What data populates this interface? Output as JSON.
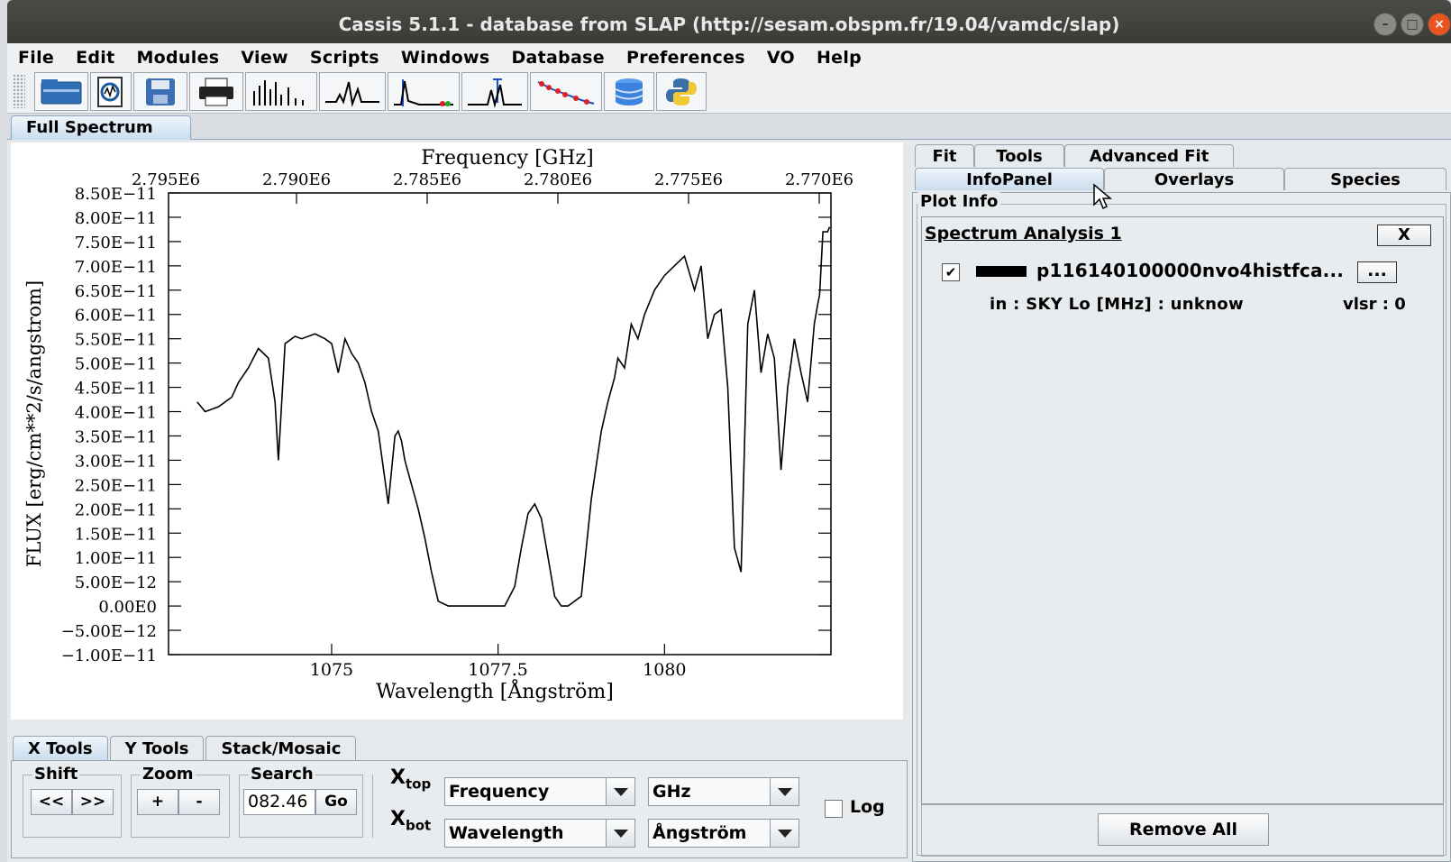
{
  "window": {
    "title": "Cassis 5.1.1 - database from SLAP (http://sesam.obspm.fr/19.04/vamdc/slap)"
  },
  "menu": [
    "File",
    "Edit",
    "Modules",
    "View",
    "Scripts",
    "Windows",
    "Database",
    "Preferences",
    "VO",
    "Help"
  ],
  "toolbar": {
    "icons": [
      "open-folder-icon",
      "open-spectrum-icon",
      "save-icon",
      "print-icon",
      "line-spectrum-icon",
      "spectrum-analysis-icon",
      "line-analysis-icon",
      "loomis-wood-icon",
      "rotational-diagram-icon",
      "database-icon",
      "python-icon"
    ]
  },
  "main_tab": {
    "label": "Full Spectrum"
  },
  "chart_data": {
    "type": "line",
    "top_axis_title": "Frequency [GHz]",
    "top_ticks": [
      "2.795E6",
      "2.790E6",
      "2.785E6",
      "2.780E6",
      "2.775E6",
      "2.770E6"
    ],
    "xlabel": "Wavelength [Ångström]",
    "x_ticks": [
      "1075",
      "1077.5",
      "1080"
    ],
    "ylabel": "FLUX [erg/cm**2/s/angstrom]",
    "y_ticks": [
      "8.50E−11",
      "8.00E−11",
      "7.50E−11",
      "7.00E−11",
      "6.50E−11",
      "6.00E−11",
      "5.50E−11",
      "5.00E−11",
      "4.50E−11",
      "4.00E−11",
      "3.50E−11",
      "3.00E−11",
      "2.50E−11",
      "2.00E−11",
      "1.50E−11",
      "1.00E−11",
      "5.00E−12",
      "0.00E0",
      "−5.00E−12",
      "−1.00E−11"
    ],
    "xlim": [
      1072.55,
      1082.5
    ],
    "ylim": [
      -1e-11,
      8.5e-11
    ],
    "color": "#000000",
    "x": [
      1072.98,
      1073.1,
      1073.3,
      1073.5,
      1073.6,
      1073.75,
      1073.9,
      1074.05,
      1074.15,
      1074.2,
      1074.3,
      1074.45,
      1074.55,
      1074.75,
      1074.9,
      1075.0,
      1075.1,
      1075.2,
      1075.3,
      1075.4,
      1075.5,
      1075.6,
      1075.7,
      1075.85,
      1075.95,
      1076.0,
      1076.05,
      1076.1,
      1076.2,
      1076.3,
      1076.4,
      1076.5,
      1076.6,
      1076.75,
      1076.85,
      1077.0,
      1077.2,
      1077.4,
      1077.6,
      1077.75,
      1077.85,
      1077.95,
      1078.05,
      1078.15,
      1078.25,
      1078.35,
      1078.45,
      1078.55,
      1078.65,
      1078.75,
      1078.9,
      1079.05,
      1079.15,
      1079.25,
      1079.3,
      1079.4,
      1079.5,
      1079.6,
      1079.7,
      1079.85,
      1080.0,
      1080.15,
      1080.3,
      1080.45,
      1080.55,
      1080.65,
      1080.75,
      1080.85,
      1080.95,
      1081.05,
      1081.15,
      1081.25,
      1081.35,
      1081.45,
      1081.55,
      1081.65,
      1081.75,
      1081.85,
      1081.95,
      1082.05,
      1082.15,
      1082.25,
      1082.3,
      1082.33,
      1082.38,
      1082.45,
      1082.48
    ],
    "y": [
      4.2e-11,
      4e-11,
      4.1e-11,
      4.3e-11,
      4.6e-11,
      4.9e-11,
      5.3e-11,
      5.1e-11,
      4.2e-11,
      3e-11,
      5.4e-11,
      5.55e-11,
      5.5e-11,
      5.6e-11,
      5.5e-11,
      5.4e-11,
      4.8e-11,
      5.5e-11,
      5.2e-11,
      5e-11,
      4.6e-11,
      4e-11,
      3.6e-11,
      2.1e-11,
      3.5e-11,
      3.6e-11,
      3.4e-11,
      3e-11,
      2.5e-11,
      2e-11,
      1.4e-11,
      7e-12,
      1e-12,
      0.0,
      0.0,
      0.0,
      0.0,
      0.0,
      0.0,
      4e-12,
      1.2e-11,
      1.9e-11,
      2.1e-11,
      1.8e-11,
      1e-11,
      2e-12,
      0.0,
      0.0,
      1e-12,
      2e-12,
      2.2e-11,
      3.6e-11,
      4.2e-11,
      4.7e-11,
      5.1e-11,
      4.9e-11,
      5.8e-11,
      5.5e-11,
      6e-11,
      6.5e-11,
      6.8e-11,
      7e-11,
      7.2e-11,
      6.5e-11,
      7e-11,
      5.5e-11,
      6e-11,
      6.1e-11,
      4.5e-11,
      1.2e-11,
      7e-12,
      5.8e-11,
      6.5e-11,
      4.8e-11,
      5.6e-11,
      5.1e-11,
      2.8e-11,
      4.5e-11,
      5.5e-11,
      4.8e-11,
      4.2e-11,
      5.8e-11,
      6.2e-11,
      6.4e-11,
      7.7e-11,
      7.7e-11,
      7.8e-11
    ]
  },
  "x_tools": {
    "tabs": [
      "X Tools",
      "Y Tools",
      "Stack/Mosaic"
    ],
    "shift": {
      "title": "Shift",
      "left": "<<",
      "right": ">>"
    },
    "zoom": {
      "title": "Zoom",
      "plus": "+",
      "minus": "-"
    },
    "search": {
      "title": "Search",
      "value": "082.46",
      "go": "Go"
    },
    "xtop": {
      "label": "X",
      "sub": "top",
      "axis": "Frequency",
      "unit": "GHz"
    },
    "xbot": {
      "label": "X",
      "sub": "bot",
      "axis": "Wavelength",
      "unit": "Ångström"
    },
    "log": "Log"
  },
  "right_panel": {
    "tabs_row1": [
      "Fit",
      "Tools",
      "Advanced Fit"
    ],
    "tabs_row2": [
      "InfoPanel",
      "Overlays",
      "Species"
    ],
    "plot_info_title": "Plot Info",
    "analysis_title": "Spectrum Analysis 1",
    "close_label": "X",
    "spectrum_name": "p116140100000nvo4histfca...",
    "more_label": "...",
    "info_text": "in : SKY Lo [MHz] : unknow",
    "vlsr_text": "vlsr : 0",
    "remove_all": "Remove All"
  }
}
